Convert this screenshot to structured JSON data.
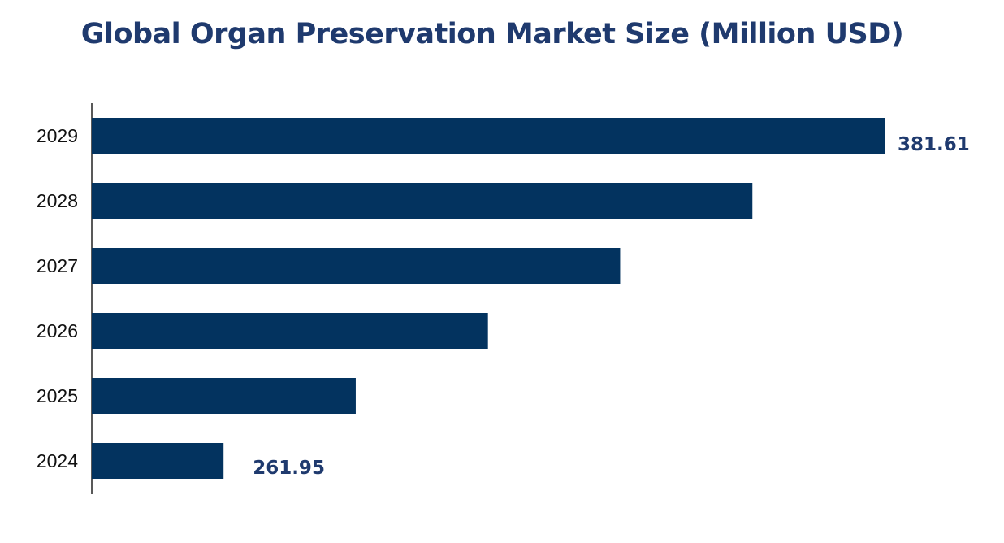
{
  "chart_data": {
    "type": "bar",
    "orientation": "horizontal",
    "title": "Global Organ Preservation Market Size (Million USD)",
    "categories": [
      "2029",
      "2028",
      "2027",
      "2026",
      "2025",
      "2024"
    ],
    "values": [
      381.61,
      357.68,
      333.74,
      309.81,
      285.88,
      261.95
    ],
    "data_labels": [
      "381.61",
      "",
      "",
      "",
      "",
      "261.95"
    ],
    "xlabel": "",
    "ylabel": "",
    "grid": false,
    "legend": "none",
    "colors": {
      "bar": "#03335f",
      "title": "#1f3a6e",
      "label": "#1f3a6e"
    }
  }
}
